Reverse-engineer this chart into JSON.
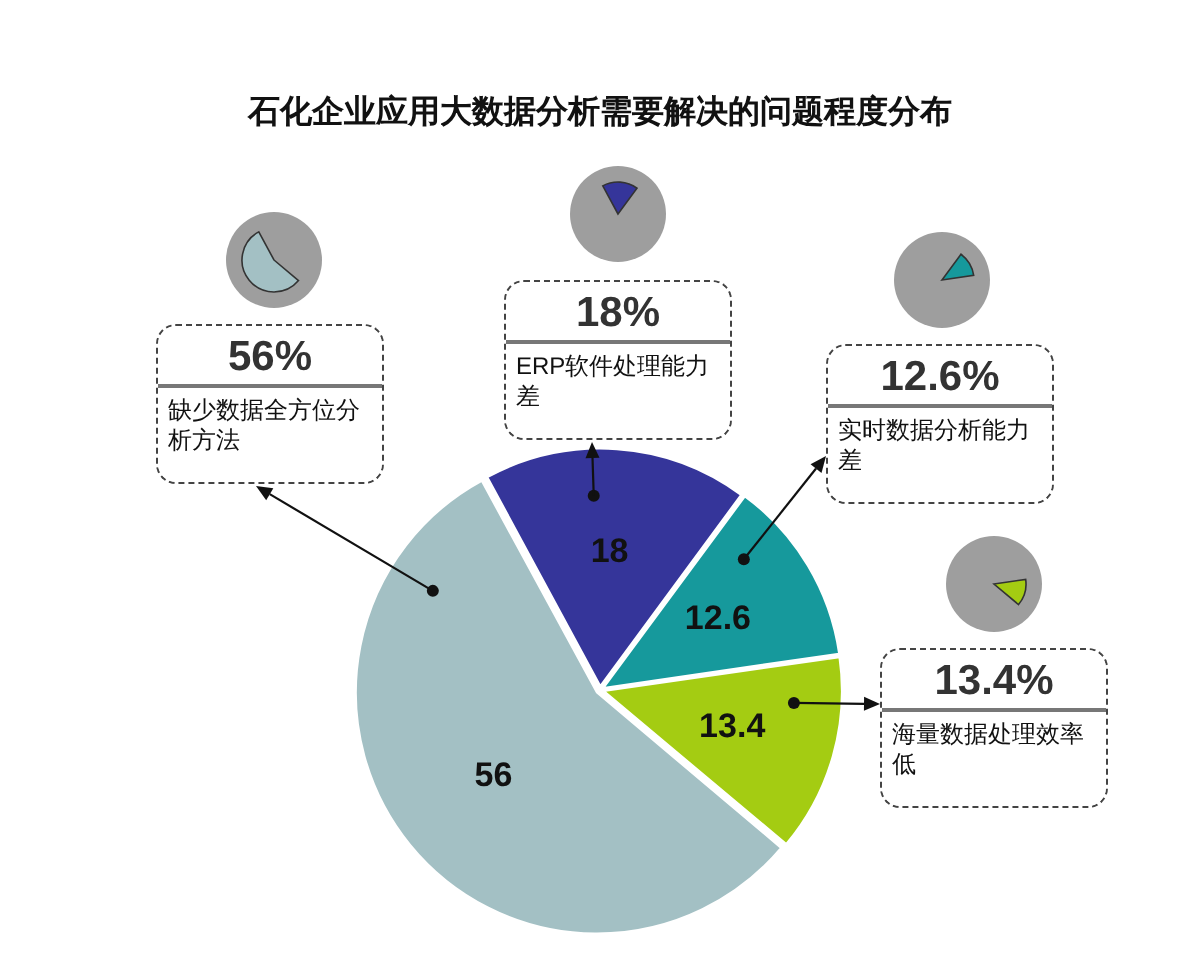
{
  "chart_data": {
    "type": "pie",
    "title": "石化企业应用大数据分析需要解决的问题程度分布",
    "categories": [
      "缺少数据全方位分析方法",
      "ERP软件处理能力差",
      "实时数据分析能力差",
      "海量数据处理效率低"
    ],
    "values": [
      56,
      18,
      12.6,
      13.4
    ],
    "colors": [
      "#a3c0c4",
      "#35359a",
      "#16999c",
      "#a4cc12"
    ],
    "data_labels": true,
    "annotations": [
      "56%",
      "18%",
      "12.6%",
      "13.4%"
    ],
    "legend": false
  }
}
